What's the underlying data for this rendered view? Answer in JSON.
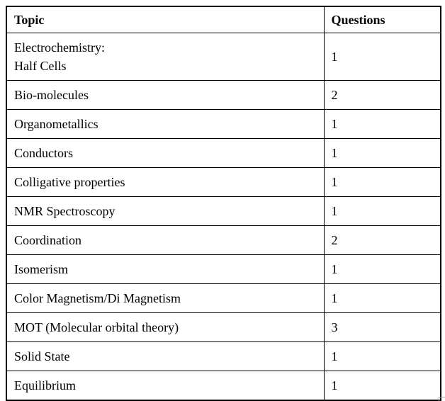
{
  "colors": {
    "background": "#ffffff",
    "border": "#000000",
    "text": "#000000",
    "corner_artifact": "#a6a6a6"
  },
  "table": {
    "headers": [
      "Topic",
      "Questions"
    ],
    "rows": [
      {
        "topic": "Electrochemistry:\nHalf Cells",
        "questions": "1"
      },
      {
        "topic": "Bio-molecules",
        "questions": "2"
      },
      {
        "topic": "Organometallics",
        "questions": "1"
      },
      {
        "topic": "Conductors",
        "questions": "1"
      },
      {
        "topic": "Colligative properties",
        "questions": "1"
      },
      {
        "topic": "NMR Spectroscopy",
        "questions": "1"
      },
      {
        "topic": "Coordination",
        "questions": "2"
      },
      {
        "topic": "Isomerism",
        "questions": "1"
      },
      {
        "topic": "Color Magnetism/Di Magnetism",
        "questions": "1"
      },
      {
        "topic": "MOT (Molecular orbital theory)",
        "questions": "3"
      },
      {
        "topic": "Solid State",
        "questions": "1"
      },
      {
        "topic": "Equilibrium",
        "questions": "1"
      }
    ]
  }
}
